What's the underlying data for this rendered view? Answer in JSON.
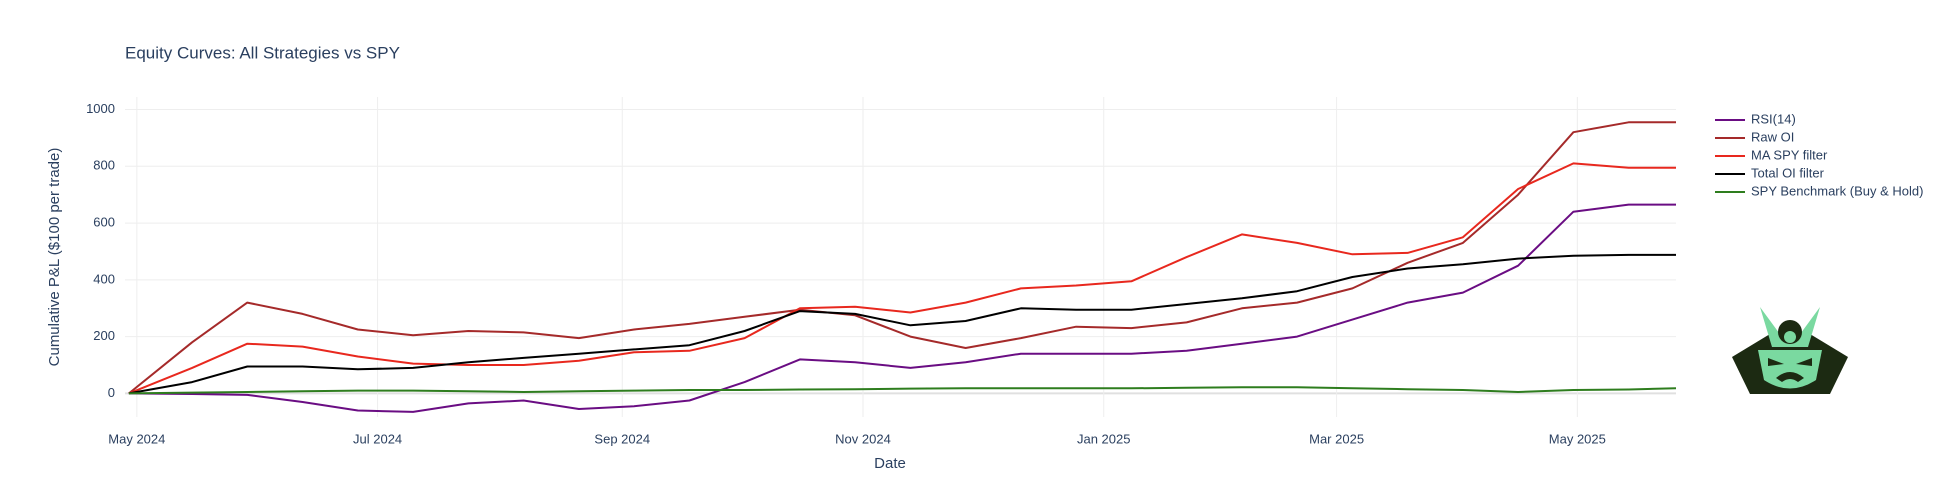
{
  "chart_data": {
    "type": "line",
    "title": "Equity Curves: All Strategies vs SPY",
    "xlabel": "Date",
    "ylabel": "Cumulative P&L ($100 per trade)",
    "x": [
      "2024-04-29",
      "2024-05-15",
      "2024-05-29",
      "2024-06-12",
      "2024-06-26",
      "2024-07-10",
      "2024-07-24",
      "2024-08-07",
      "2024-08-21",
      "2024-09-04",
      "2024-09-18",
      "2024-10-02",
      "2024-10-16",
      "2024-10-30",
      "2024-11-13",
      "2024-11-27",
      "2024-12-11",
      "2024-12-25",
      "2025-01-08",
      "2025-01-22",
      "2025-02-05",
      "2025-02-19",
      "2025-03-05",
      "2025-03-19",
      "2025-04-02",
      "2025-04-16",
      "2025-04-30",
      "2025-05-14",
      "2025-05-26"
    ],
    "series": [
      {
        "name": "RSI(14)",
        "color": "#6a0d83",
        "values": [
          0,
          -2,
          -5,
          -30,
          -60,
          -65,
          -35,
          -25,
          -55,
          -45,
          -25,
          40,
          120,
          110,
          90,
          110,
          140,
          140,
          140,
          150,
          175,
          200,
          260,
          320,
          355,
          450,
          640,
          665,
          665
        ]
      },
      {
        "name": "Raw OI",
        "color": "#a52a2a",
        "values": [
          0,
          180,
          320,
          280,
          225,
          205,
          220,
          215,
          195,
          225,
          245,
          270,
          295,
          275,
          200,
          160,
          195,
          235,
          230,
          250,
          300,
          320,
          370,
          460,
          530,
          700,
          920,
          955,
          955
        ]
      },
      {
        "name": "MA SPY filter",
        "color": "#e8281e",
        "values": [
          0,
          90,
          175,
          165,
          130,
          105,
          100,
          100,
          115,
          145,
          150,
          195,
          300,
          305,
          285,
          320,
          370,
          380,
          395,
          480,
          560,
          530,
          490,
          495,
          550,
          720,
          810,
          795,
          795
        ]
      },
      {
        "name": "Total OI filter",
        "color": "#000000",
        "values": [
          0,
          40,
          95,
          95,
          85,
          90,
          110,
          125,
          140,
          155,
          170,
          220,
          290,
          280,
          240,
          255,
          300,
          295,
          295,
          315,
          335,
          360,
          410,
          440,
          455,
          475,
          485,
          488,
          488
        ]
      },
      {
        "name": "SPY Benchmark (Buy & Hold)",
        "color": "#2e7d1e",
        "values": [
          0,
          3,
          5,
          8,
          10,
          10,
          8,
          5,
          8,
          10,
          12,
          12,
          14,
          15,
          17,
          18,
          18,
          18,
          18,
          20,
          22,
          22,
          18,
          15,
          12,
          5,
          12,
          14,
          18
        ]
      }
    ],
    "xlim": [
      "2024-04-28",
      "2025-05-26"
    ],
    "xticks": [
      {
        "value": "2024-05-01",
        "label": "May 2024"
      },
      {
        "value": "2024-07-01",
        "label": "Jul 2024"
      },
      {
        "value": "2024-09-01",
        "label": "Sep 2024"
      },
      {
        "value": "2024-11-01",
        "label": "Nov 2024"
      },
      {
        "value": "2025-01-01",
        "label": "Jan 2025"
      },
      {
        "value": "2025-03-01",
        "label": "Mar 2025"
      },
      {
        "value": "2025-05-01",
        "label": "May 2025"
      }
    ],
    "ylim": [
      -83,
      1044
    ],
    "yticks": [
      0,
      200,
      400,
      600,
      800,
      1000
    ],
    "grid": true,
    "legend": "top-right"
  }
}
